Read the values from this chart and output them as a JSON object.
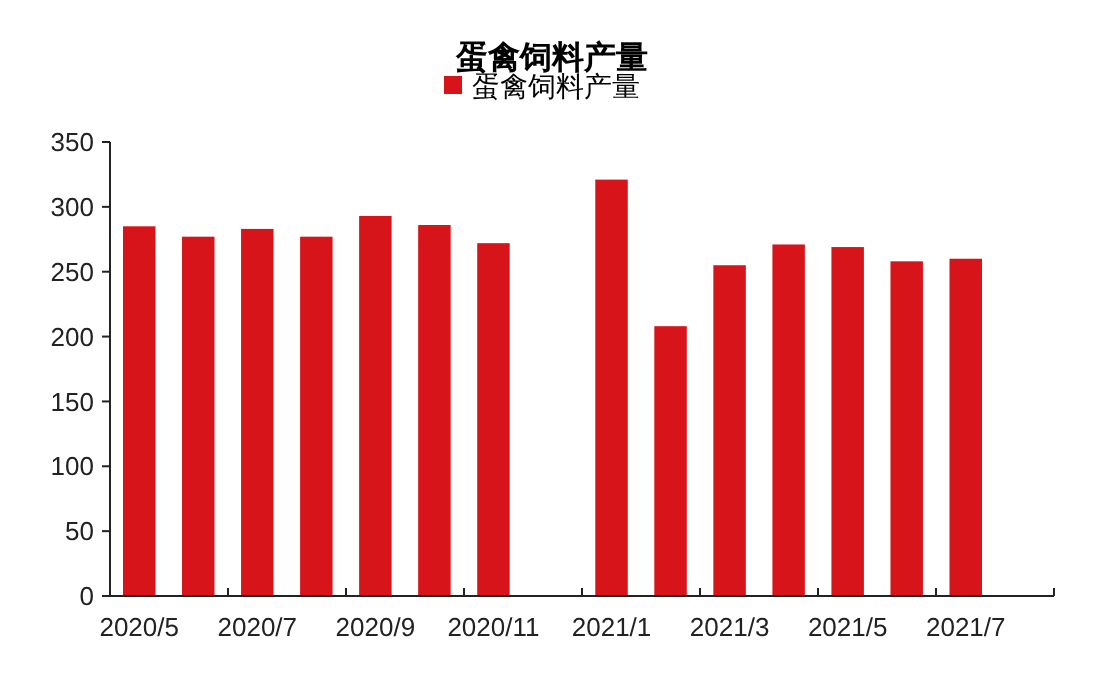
{
  "chart_data": {
    "type": "bar",
    "title": "蛋禽饲料产量",
    "categories": [
      "2020/5",
      null,
      "2020/7",
      null,
      "2020/9",
      null,
      "2020/11",
      null,
      "2021/1",
      null,
      "2021/3",
      null,
      "2021/5",
      null,
      "2021/7",
      null
    ],
    "series": [
      {
        "name": "蛋禽饲料产量",
        "color": "#d7141a",
        "values": [
          285,
          277,
          283,
          277,
          293,
          286,
          272,
          null,
          321,
          208,
          255,
          271,
          269,
          258,
          260,
          null
        ]
      }
    ],
    "ylim": [
      0,
      350
    ],
    "yticks": [
      0,
      50,
      100,
      150,
      200,
      250,
      300,
      350
    ],
    "grid": false,
    "legend": "top"
  }
}
